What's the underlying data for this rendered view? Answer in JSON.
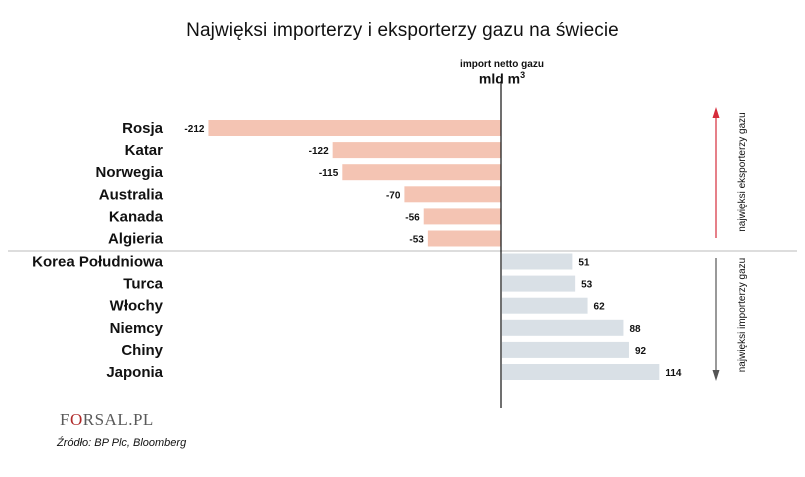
{
  "chart_data": {
    "type": "bar",
    "orientation": "horizontal",
    "title": "Najwięksi importerzy i eksporterzy gazu na świecie",
    "unit_caption": "import netto gazu",
    "unit": "mld m",
    "unit_superscript": "3",
    "categories": [
      "Rosja",
      "Katar",
      "Norwegia",
      "Australia",
      "Kanada",
      "Algieria",
      "Korea Południowa",
      "Turca",
      "Włochy",
      "Niemcy",
      "Chiny",
      "Japonia"
    ],
    "values": [
      -212,
      -122,
      -115,
      -70,
      -56,
      -53,
      51,
      53,
      62,
      88,
      92,
      114
    ],
    "colors": {
      "negative": "#f4c4b3",
      "positive": "#d9e0e6",
      "arrow_up": "#d62b3a",
      "arrow_down": "#555555",
      "axis": "#111111",
      "divider": "#bbbbbb"
    },
    "side_labels": {
      "exporters": "najwięksi eksporterzy gazu",
      "importers": "najwięksi importerzy gazu"
    }
  },
  "logo": {
    "text_before": "F",
    "text_o": "O",
    "text_after": "RSAL.PL"
  },
  "source": "Źródło: BP Plc, Bloomberg"
}
